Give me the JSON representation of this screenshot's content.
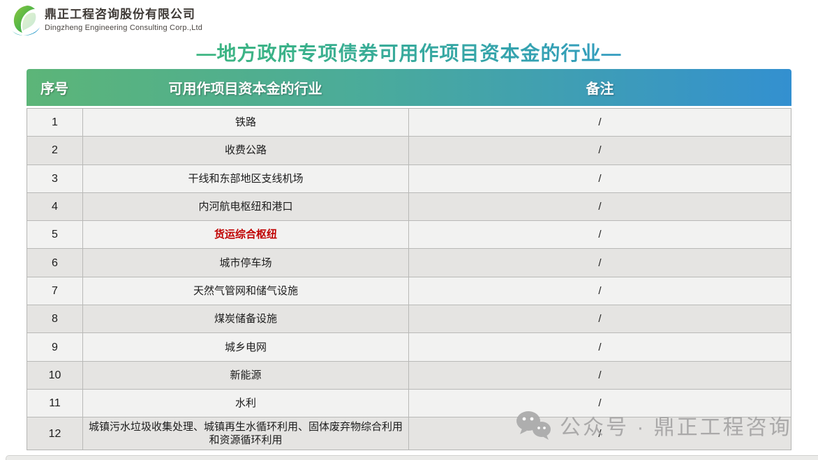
{
  "logo": {
    "company_cn": "鼎正工程咨询股份有限公司",
    "company_en": "Dingzheng Engineering Consulting Corp.,Ltd"
  },
  "title": "—地方政府专项债券可用作项目资本金的行业—",
  "table": {
    "headers": [
      "序号",
      "可用作项目资本金的行业",
      "备注"
    ],
    "rows": [
      {
        "no": "1",
        "industry": "铁路",
        "remark": "/",
        "highlight": false
      },
      {
        "no": "2",
        "industry": "收费公路",
        "remark": "/",
        "highlight": false
      },
      {
        "no": "3",
        "industry": "干线和东部地区支线机场",
        "remark": "/",
        "highlight": false
      },
      {
        "no": "4",
        "industry": "内河航电枢纽和港口",
        "remark": "/",
        "highlight": false
      },
      {
        "no": "5",
        "industry": "货运综合枢纽",
        "remark": "/",
        "highlight": true
      },
      {
        "no": "6",
        "industry": "城市停车场",
        "remark": "/",
        "highlight": false
      },
      {
        "no": "7",
        "industry": "天然气管网和储气设施",
        "remark": "/",
        "highlight": false
      },
      {
        "no": "8",
        "industry": "煤炭储备设施",
        "remark": "/",
        "highlight": false
      },
      {
        "no": "9",
        "industry": "城乡电网",
        "remark": "/",
        "highlight": false
      },
      {
        "no": "10",
        "industry": "新能源",
        "remark": "/",
        "highlight": false
      },
      {
        "no": "11",
        "industry": "水利",
        "remark": "/",
        "highlight": false
      },
      {
        "no": "12",
        "industry": "城镇污水垃圾收集处理、城镇再生水循环利用、固体废弃物综合利用和资源循环利用",
        "remark": "/",
        "highlight": false,
        "tall": true
      }
    ]
  },
  "watermark": {
    "icon": "wechat-icon",
    "text": "公众号 · 鼎正工程咨询"
  },
  "colors": {
    "header_gradient_left": "#5cb578",
    "header_gradient_right": "#3390d0",
    "title_gradient_left": "#3fba77",
    "title_gradient_right": "#2e93d5",
    "row_light": "#f2f2f1",
    "row_dark": "#e5e4e2",
    "highlight_red": "#c00000",
    "border_gray": "#b9b9b7",
    "watermark_gray": "#a5a5a5"
  }
}
